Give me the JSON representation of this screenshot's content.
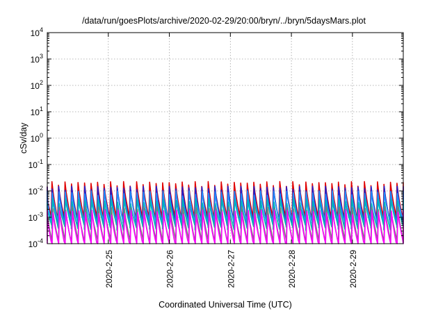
{
  "chart_data": {
    "type": "line",
    "title": "/data/run/goesPlots/archive/2020-02-29/20:00/bryn/../bryn/5daysMars.plot",
    "xlabel": "Coordinated Universal Time (UTC)",
    "ylabel": "cSv/day",
    "yscale": "log",
    "ylim": [
      0.0001,
      10000
    ],
    "y_ticks": [
      {
        "value": 0.0001,
        "base": "10",
        "exp": "-4"
      },
      {
        "value": 0.001,
        "base": "10",
        "exp": "-3"
      },
      {
        "value": 0.01,
        "base": "10",
        "exp": "-2"
      },
      {
        "value": 0.1,
        "base": "10",
        "exp": "-1"
      },
      {
        "value": 1,
        "base": "10",
        "exp": "0"
      },
      {
        "value": 10,
        "base": "10",
        "exp": "1"
      },
      {
        "value": 100,
        "base": "10",
        "exp": "2"
      },
      {
        "value": 1000,
        "base": "10",
        "exp": "3"
      },
      {
        "value": 10000,
        "base": "10",
        "exp": "4"
      }
    ],
    "xlim": [
      "2020-02-24 00:00",
      "2020-02-29 20:00"
    ],
    "x_ticks": [
      {
        "value": "2020-02-25",
        "label": "2020-2-25"
      },
      {
        "value": "2020-02-26",
        "label": "2020-2-26"
      },
      {
        "value": "2020-02-27",
        "label": "2020-2-27"
      },
      {
        "value": "2020-02-28",
        "label": "2020-2-28"
      },
      {
        "value": "2020-02-29",
        "label": "2020-2-29"
      }
    ],
    "grid": true,
    "legend": "none",
    "sawtooth_period_hours": 2.56,
    "series": [
      {
        "color": "#e00000",
        "peak": 0.018,
        "trough": 0.0009
      },
      {
        "color": "#2222cc",
        "peak": 0.012,
        "trough": 0.0006
      },
      {
        "color": "#1e90ff",
        "peak": 0.008,
        "trough": 0.0006
      },
      {
        "color": "#00b4b4",
        "peak": 0.004,
        "trough": 0.0004
      },
      {
        "color": "#7a7a7a",
        "peak": 0.002,
        "trough": 0.00012
      },
      {
        "color": "#ff00ff",
        "peak": 0.0015,
        "trough": 8e-05
      }
    ]
  }
}
